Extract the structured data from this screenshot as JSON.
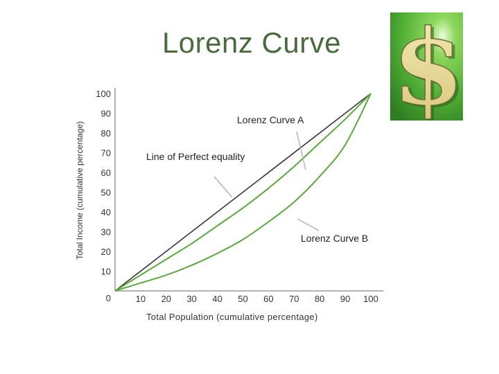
{
  "slide": {
    "title": "Lorenz Curve"
  },
  "logo": {
    "icon": "dollar-sign-icon",
    "glyph": "$",
    "colors": {
      "background": "#57b73c",
      "glyph": "#e3d48a"
    }
  },
  "chart_data": {
    "type": "line",
    "xlabel": "Total Population (cumulative percentage)",
    "ylabel": "Total Income (cumulative percentage)",
    "xlim": [
      0,
      100
    ],
    "ylim": [
      0,
      100
    ],
    "x_ticks": [
      10,
      20,
      30,
      40,
      50,
      60,
      70,
      80,
      90,
      100
    ],
    "y_ticks": [
      0,
      10,
      20,
      30,
      40,
      50,
      60,
      70,
      80,
      90,
      100
    ],
    "grid": false,
    "legend": "none",
    "series": [
      {
        "name": "Line of Perfect equality",
        "color": "#333333",
        "x": [
          0,
          100
        ],
        "y": [
          0,
          100
        ]
      },
      {
        "name": "Lorenz Curve A",
        "color": "#5aa83c",
        "x": [
          0,
          10,
          20,
          30,
          40,
          50,
          60,
          70,
          80,
          90,
          100
        ],
        "y": [
          0,
          8,
          16,
          24,
          33,
          42,
          52,
          63,
          75,
          87,
          100
        ]
      },
      {
        "name": "Lorenz Curve B",
        "color": "#5aa83c",
        "x": [
          0,
          10,
          20,
          30,
          40,
          50,
          60,
          70,
          80,
          90,
          100
        ],
        "y": [
          0,
          4,
          8,
          13,
          19,
          26,
          35,
          45,
          58,
          74,
          100
        ]
      }
    ],
    "annotations": [
      {
        "text": "Lorenz Curve A",
        "series": 1
      },
      {
        "text": "Line of Perfect equality",
        "series": 0
      },
      {
        "text": "Lorenz Curve B",
        "series": 2
      }
    ]
  }
}
